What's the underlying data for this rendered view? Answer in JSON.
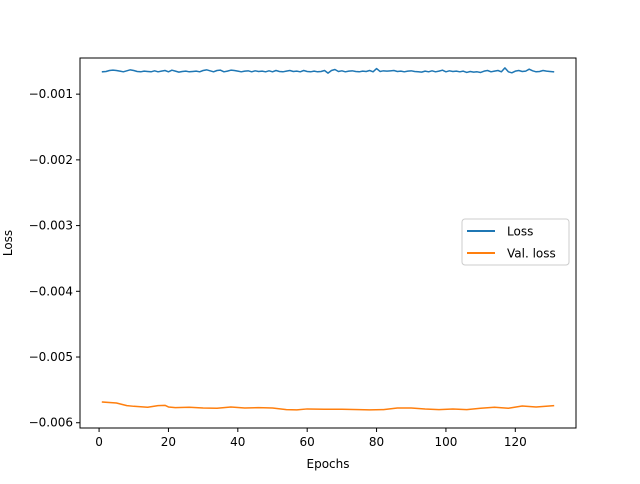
{
  "chart_data": {
    "type": "line",
    "title": "",
    "xlabel": "Epochs",
    "ylabel": "Loss",
    "xlim": [
      -5.5,
      137.5
    ],
    "ylim": [
      -0.00608,
      -0.00045
    ],
    "xticks": [
      0,
      20,
      40,
      60,
      80,
      100,
      120
    ],
    "xtick_labels": [
      "0",
      "20",
      "40",
      "60",
      "80",
      "100",
      "120"
    ],
    "yticks": [
      -0.001,
      -0.002,
      -0.003,
      -0.004,
      -0.005,
      -0.006
    ],
    "ytick_labels": [
      "−0.001",
      "−0.002",
      "−0.003",
      "−0.004",
      "−0.005",
      "−0.006"
    ],
    "grid": false,
    "legend_position": "center-right",
    "series": [
      {
        "name": "Loss",
        "color": "#1f77b4",
        "x": [
          1,
          2,
          3,
          4,
          5,
          6,
          7,
          8,
          9,
          10,
          11,
          12,
          13,
          14,
          15,
          16,
          17,
          18,
          19,
          20,
          21,
          22,
          23,
          24,
          25,
          26,
          27,
          28,
          29,
          30,
          31,
          32,
          33,
          34,
          35,
          36,
          37,
          38,
          39,
          40,
          41,
          42,
          43,
          44,
          45,
          46,
          47,
          48,
          49,
          50,
          51,
          52,
          53,
          54,
          55,
          56,
          57,
          58,
          59,
          60,
          61,
          62,
          63,
          64,
          65,
          66,
          67,
          68,
          69,
          70,
          71,
          72,
          73,
          74,
          75,
          76,
          77,
          78,
          79,
          80,
          81,
          82,
          83,
          84,
          85,
          86,
          87,
          88,
          89,
          90,
          91,
          92,
          93,
          94,
          95,
          96,
          97,
          98,
          99,
          100,
          101,
          102,
          103,
          104,
          105,
          106,
          107,
          108,
          109,
          110,
          111,
          112,
          113,
          114,
          115,
          116,
          117,
          118,
          119,
          120,
          121,
          122,
          123,
          124,
          125,
          126,
          127,
          128,
          129,
          130,
          131
        ],
        "y": [
          -0.00066,
          -0.000655,
          -0.00064,
          -0.000635,
          -0.00064,
          -0.00065,
          -0.00066,
          -0.000645,
          -0.00063,
          -0.00064,
          -0.000655,
          -0.00066,
          -0.00065,
          -0.000655,
          -0.00066,
          -0.000645,
          -0.00066,
          -0.00065,
          -0.00064,
          -0.00066,
          -0.000635,
          -0.00065,
          -0.000665,
          -0.000655,
          -0.00065,
          -0.00066,
          -0.000655,
          -0.00065,
          -0.00066,
          -0.00064,
          -0.00063,
          -0.000645,
          -0.00066,
          -0.00064,
          -0.000635,
          -0.00066,
          -0.00065,
          -0.000635,
          -0.00064,
          -0.00065,
          -0.00066,
          -0.00065,
          -0.000645,
          -0.00066,
          -0.000645,
          -0.000655,
          -0.00065,
          -0.00066,
          -0.000645,
          -0.00066,
          -0.00064,
          -0.000655,
          -0.00066,
          -0.00065,
          -0.00064,
          -0.000655,
          -0.00065,
          -0.00066,
          -0.00064,
          -0.000655,
          -0.00066,
          -0.00065,
          -0.00066,
          -0.000655,
          -0.00064,
          -0.00068,
          -0.00064,
          -0.000625,
          -0.000655,
          -0.000645,
          -0.00066,
          -0.00065,
          -0.000645,
          -0.000655,
          -0.00066,
          -0.00065,
          -0.000655,
          -0.00064,
          -0.00066,
          -0.00061,
          -0.000655,
          -0.000645,
          -0.00065,
          -0.000645,
          -0.00064,
          -0.000655,
          -0.00065,
          -0.00066,
          -0.00065,
          -0.000645,
          -0.000655,
          -0.00066,
          -0.000665,
          -0.00065,
          -0.00066,
          -0.000645,
          -0.00066,
          -0.00065,
          -0.000635,
          -0.00066,
          -0.000645,
          -0.000655,
          -0.00065,
          -0.00066,
          -0.00065,
          -0.00067,
          -0.000655,
          -0.000665,
          -0.00066,
          -0.00067,
          -0.00065,
          -0.00064,
          -0.00066,
          -0.00065,
          -0.00064,
          -0.00066,
          -0.0006,
          -0.00066,
          -0.000675,
          -0.00065,
          -0.00064,
          -0.000655,
          -0.00065,
          -0.00062,
          -0.000645,
          -0.00066,
          -0.000655,
          -0.00064,
          -0.00065,
          -0.000655,
          -0.00066
        ]
      },
      {
        "name": "Val. loss",
        "color": "#ff7f0e",
        "x": [
          1,
          5,
          8,
          10,
          14,
          17,
          19,
          20,
          22,
          26,
          30,
          34,
          38,
          42,
          46,
          50,
          54,
          57,
          60,
          65,
          70,
          75,
          78,
          82,
          86,
          90,
          94,
          98,
          102,
          106,
          110,
          114,
          118,
          122,
          126,
          131
        ],
        "y": [
          -0.005685,
          -0.0057,
          -0.00574,
          -0.00575,
          -0.005765,
          -0.00574,
          -0.005735,
          -0.00576,
          -0.00577,
          -0.005765,
          -0.005775,
          -0.00578,
          -0.00576,
          -0.005775,
          -0.00577,
          -0.005775,
          -0.0058,
          -0.005805,
          -0.00579,
          -0.005795,
          -0.005795,
          -0.0058,
          -0.005805,
          -0.0058,
          -0.005775,
          -0.005775,
          -0.00579,
          -0.0058,
          -0.00579,
          -0.0058,
          -0.00578,
          -0.005765,
          -0.00578,
          -0.005745,
          -0.00576,
          -0.00574
        ]
      }
    ]
  }
}
